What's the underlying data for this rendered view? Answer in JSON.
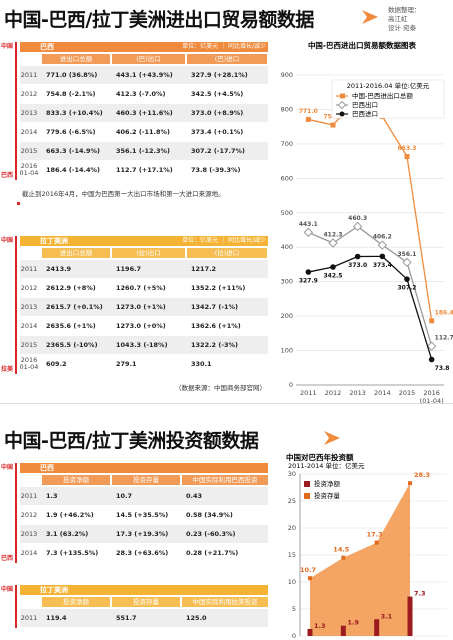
{
  "header": {
    "title": "中国-巴西/拉丁美洲进出口贸易额数据",
    "credits": [
      "数据整理：",
      "高江虹",
      "设计 宛泰"
    ]
  },
  "trade_tables": [
    {
      "side": [
        "中国",
        "巴西"
      ],
      "label": "巴西",
      "unit": "单位：亿美元 ｜ 同比增长/减少",
      "columns": [
        "进出口总额",
        "(巴)出口",
        "(巴)进口"
      ],
      "rows": [
        {
          "year": "2011",
          "cells": [
            "771.0 (36.8%)",
            "443.1 (+43.9%)",
            "327.9 (+28.1%)"
          ]
        },
        {
          "year": "2012",
          "cells": [
            "754.8 (-2.1%)",
            "412.3 (-7.0%)",
            "342.5 (+4.5%)"
          ]
        },
        {
          "year": "2013",
          "cells": [
            "833.3 (+10.4%)",
            "460.3 (+11.6%)",
            "373.0 (+8.9%)"
          ]
        },
        {
          "year": "2014",
          "cells": [
            "779.6 (-6.5%)",
            "406.2 (-11.8%)",
            "373.4 (+0.1%)"
          ]
        },
        {
          "year": "2015",
          "cells": [
            "663.3 (-14.9%)",
            "356.1 (-12.3%)",
            "307.2 (-17.7%)"
          ]
        },
        {
          "year": "2016 01-04",
          "cells": [
            "186.4 (-14.4%)",
            "112.7 (+17.1%)",
            "73.8 (-39.3%)"
          ]
        }
      ],
      "note": "截止到2016年4月，中国为巴西第一大出口市场和第一大进口来源地。"
    },
    {
      "side": [
        "中国",
        "拉美"
      ],
      "label": "拉丁美洲",
      "unit": "单位：亿美元 ｜ 同比增长/减少",
      "columns": [
        "进出口总额",
        "(拉)出口",
        "(拉)进口"
      ],
      "rows": [
        {
          "year": "2011",
          "cells": [
            "2413.9",
            "1196.7",
            "1217.2"
          ]
        },
        {
          "year": "2012",
          "cells": [
            "2612.9 (+8%)",
            "1260.7 (+5%)",
            "1352.2 (+11%)"
          ]
        },
        {
          "year": "2013",
          "cells": [
            "2615.7 (+0.1%)",
            "1273.0 (+1%)",
            "1342.7 (-1%)"
          ]
        },
        {
          "year": "2014",
          "cells": [
            "2635.6 (+1%)",
            "1273.0 (+0%)",
            "1362.6 (+1%)"
          ]
        },
        {
          "year": "2015",
          "cells": [
            "2365.5 (-10%)",
            "1043.3 (-18%)",
            "1322.2 (-3%)"
          ]
        },
        {
          "year": "2016 01-04",
          "cells": [
            "609.2",
            "279.1",
            "330.1"
          ]
        }
      ],
      "note": "（数据来源：中国商务部官网）"
    }
  ],
  "section2": {
    "title": "中国-巴西/拉丁美洲投资额数据"
  },
  "investment_tables": [
    {
      "side": [
        "中国",
        "巴西"
      ],
      "label": "巴西",
      "columns": [
        "投资净额",
        "投资存量",
        "中国实际利用巴西投资"
      ],
      "rows": [
        {
          "year": "2011",
          "cells": [
            "1.3",
            "10.7",
            "0.43"
          ]
        },
        {
          "year": "2012",
          "cells": [
            "1.9 (+46.2%)",
            "14.5 (+35.5%)",
            "0.58 (34.9%)"
          ]
        },
        {
          "year": "2013",
          "cells": [
            "3.1 (63.2%)",
            "17.3 (+19.3%)",
            "0.23 (-60.3%)"
          ]
        },
        {
          "year": "2014",
          "cells": [
            "7.3 (+135.5%)",
            "28.3 (+63.6%)",
            "0.28 (+21.7%)"
          ]
        }
      ]
    },
    {
      "side": [
        "中国"
      ],
      "label": "拉丁美洲",
      "columns": [
        "投资净额",
        "投资存量",
        "中国实际利用拉美投资"
      ],
      "rows": [
        {
          "year": "2011",
          "cells": [
            "119.4",
            "551.7",
            "125.0"
          ]
        }
      ]
    }
  ],
  "chart_data": [
    {
      "type": "line",
      "title": "中国-巴西进出口贸易额数据图表",
      "legend_title": "2011-2016.04 单位:亿美元",
      "categories": [
        "2011",
        "2012",
        "2013",
        "2014",
        "2015",
        "2016 (01-04)"
      ],
      "series": [
        {
          "name": "中国-巴西进出口总额",
          "color": "#f08a3c",
          "marker": "square",
          "values": [
            771.0,
            754.8,
            833.3,
            779.6,
            663.3,
            186.4
          ],
          "value_labels": [
            "771.0",
            "754.8",
            "833.3",
            "779.6",
            "663.3",
            "186.4"
          ]
        },
        {
          "name": "巴西出口",
          "color": "#9a9a9a",
          "marker": "diamond",
          "values": [
            443.1,
            412.3,
            460.3,
            406.2,
            356.1,
            112.7
          ],
          "value_labels": [
            "443.1",
            "412.3",
            "460.3",
            "406.2",
            "356.1",
            "112.7"
          ]
        },
        {
          "name": "巴西进口",
          "color": "#111111",
          "marker": "circle",
          "values": [
            327.9,
            342.5,
            373.0,
            373.4,
            307.2,
            73.8
          ],
          "value_labels": [
            "327.9",
            "342.5",
            "373.0",
            "373.4",
            "307.2",
            "73.8"
          ]
        }
      ],
      "ylim": [
        0,
        900
      ],
      "yticks": [
        0,
        100,
        200,
        300,
        400,
        500,
        600,
        700,
        800,
        900
      ],
      "grid": true,
      "legend": "upper right"
    },
    {
      "type": "combo",
      "title": "中国对巴西年投资额",
      "subtitle": "2011-2014 单位：亿美元",
      "series": [
        {
          "name": "投资净额",
          "kind": "bar",
          "color": "#9b1b20",
          "values": [
            1.3,
            1.9,
            3.1,
            7.3
          ]
        },
        {
          "name": "投资存量",
          "kind": "area",
          "color": "#f39a52",
          "values": [
            10.7,
            14.5,
            17.3,
            28.3
          ]
        }
      ],
      "ylim": [
        0,
        30
      ],
      "yticks": [
        0,
        5,
        10,
        15,
        20,
        25,
        30
      ],
      "grid": true,
      "legend": "upper left"
    }
  ]
}
